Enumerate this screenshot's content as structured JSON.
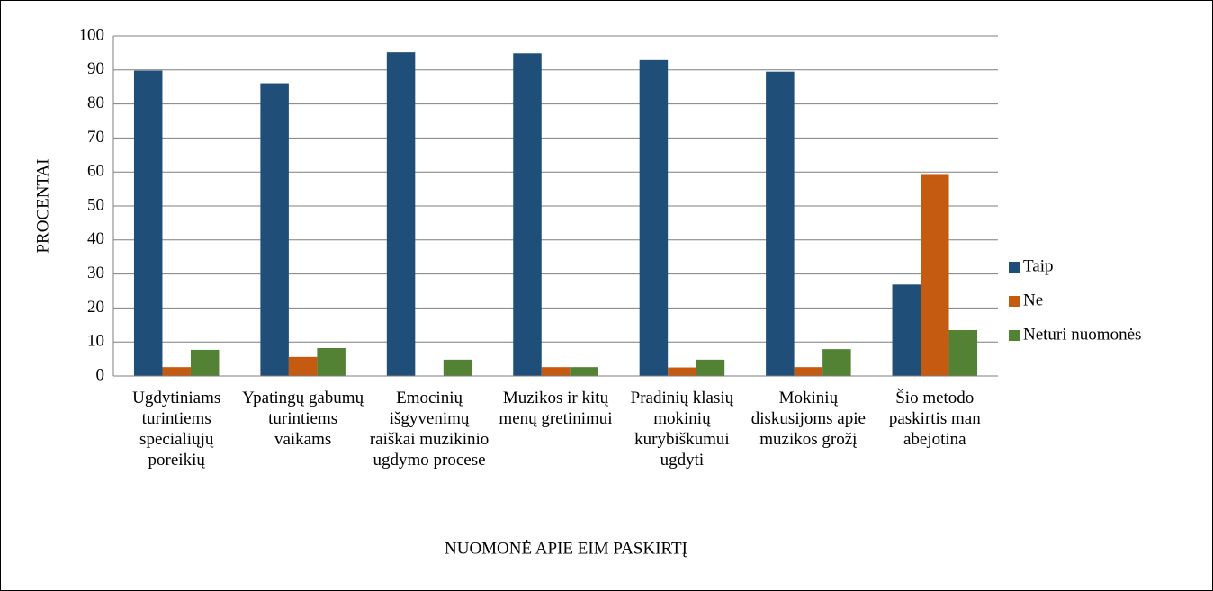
{
  "chart_data": {
    "type": "bar",
    "xlabel": "NUOMONĖ APIE EIM PASKIRTĮ",
    "ylabel": "PROCENTAI",
    "categories": [
      "Ugdytiniams turintiems specialiųjų poreikių",
      "Ypatingų gabumų turintiems vaikams",
      "Emocinių išgyvenimų raiškai muzikinio ugdymo procese",
      "Muzikos ir kitų menų gretinimui",
      "Pradinių klasių mokinių kūrybiškumui ugdyti",
      "Mokinių diskusijoms apie muzikos grožį",
      "Šio metodo paskirtis man abejotina"
    ],
    "series": [
      {
        "name": "Taip",
        "color": "#1f4e79",
        "values": [
          89.8,
          86.1,
          95.2,
          94.9,
          92.9,
          89.5,
          26.9
        ]
      },
      {
        "name": "Ne",
        "color": "#c55a11",
        "values": [
          2.6,
          5.6,
          0,
          2.6,
          2.5,
          2.6,
          59.4
        ]
      },
      {
        "name": "Neturi nuomonės",
        "color": "#548235",
        "values": [
          7.7,
          8.2,
          4.8,
          2.6,
          4.8,
          7.9,
          13.5
        ]
      }
    ],
    "ylim": [
      0,
      100
    ],
    "yticks": [
      0,
      10,
      20,
      30,
      40,
      50,
      60,
      70,
      80,
      90,
      100
    ],
    "grid": true,
    "legend": "right"
  }
}
